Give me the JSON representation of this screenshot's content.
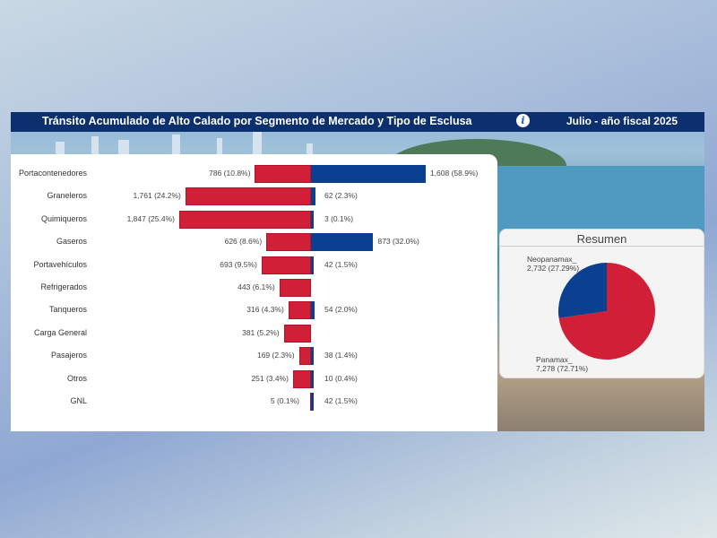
{
  "header": {
    "title": "Tránsito Acumulado de Alto Calado por Segmento de Mercado y Tipo de Esclusa",
    "info_icon": "i",
    "period": "Julio - año fiscal 2025"
  },
  "colors": {
    "panamax": "#d01f36",
    "neopanamax": "#0b3f8f",
    "header": "#0c2f6e"
  },
  "chart_data": {
    "type": "bar",
    "orientation": "diverging-horizontal",
    "categories": [
      "Portacontenedores",
      "Graneleros",
      "Quimiqueros",
      "Gaseros",
      "Portavehículos",
      "Refrigerados",
      "Tanqueros",
      "Carga General",
      "Pasajeros",
      "Otros",
      "GNL"
    ],
    "series": [
      {
        "name": "Panamax",
        "values": [
          786,
          1761,
          1847,
          626,
          693,
          443,
          316,
          381,
          169,
          251,
          5
        ],
        "labels": [
          "786 (10.8%)",
          "1,761 (24.2%)",
          "1,847 (25.4%)",
          "626 (8.6%)",
          "693 (9.5%)",
          "443 (6.1%)",
          "316 (4.3%)",
          "381 (5.2%)",
          "169 (2.3%)",
          "251 (3.4%)",
          "5 (0.1%)"
        ]
      },
      {
        "name": "Neopanamax",
        "values": [
          1608,
          62,
          3,
          873,
          42,
          0,
          54,
          0,
          38,
          10,
          42
        ],
        "labels": [
          "1,608 (58.9%)",
          "62 (2.3%)",
          "3 (0.1%)",
          "873 (32.0%)",
          "42 (1.5%)",
          "",
          "54 (2.0%)",
          "",
          "38 (1.4%)",
          "10 (0.4%)",
          "42 (1.5%)"
        ]
      }
    ]
  },
  "summary": {
    "title": "Resumen",
    "pie": [
      {
        "name": "Neopanamax_",
        "value": 2732,
        "label": "2,732 (27.29%)",
        "percent": 27.29
      },
      {
        "name": "Panamax_",
        "value": 7278,
        "label": "7,278 (72.71%)",
        "percent": 72.71
      }
    ]
  }
}
